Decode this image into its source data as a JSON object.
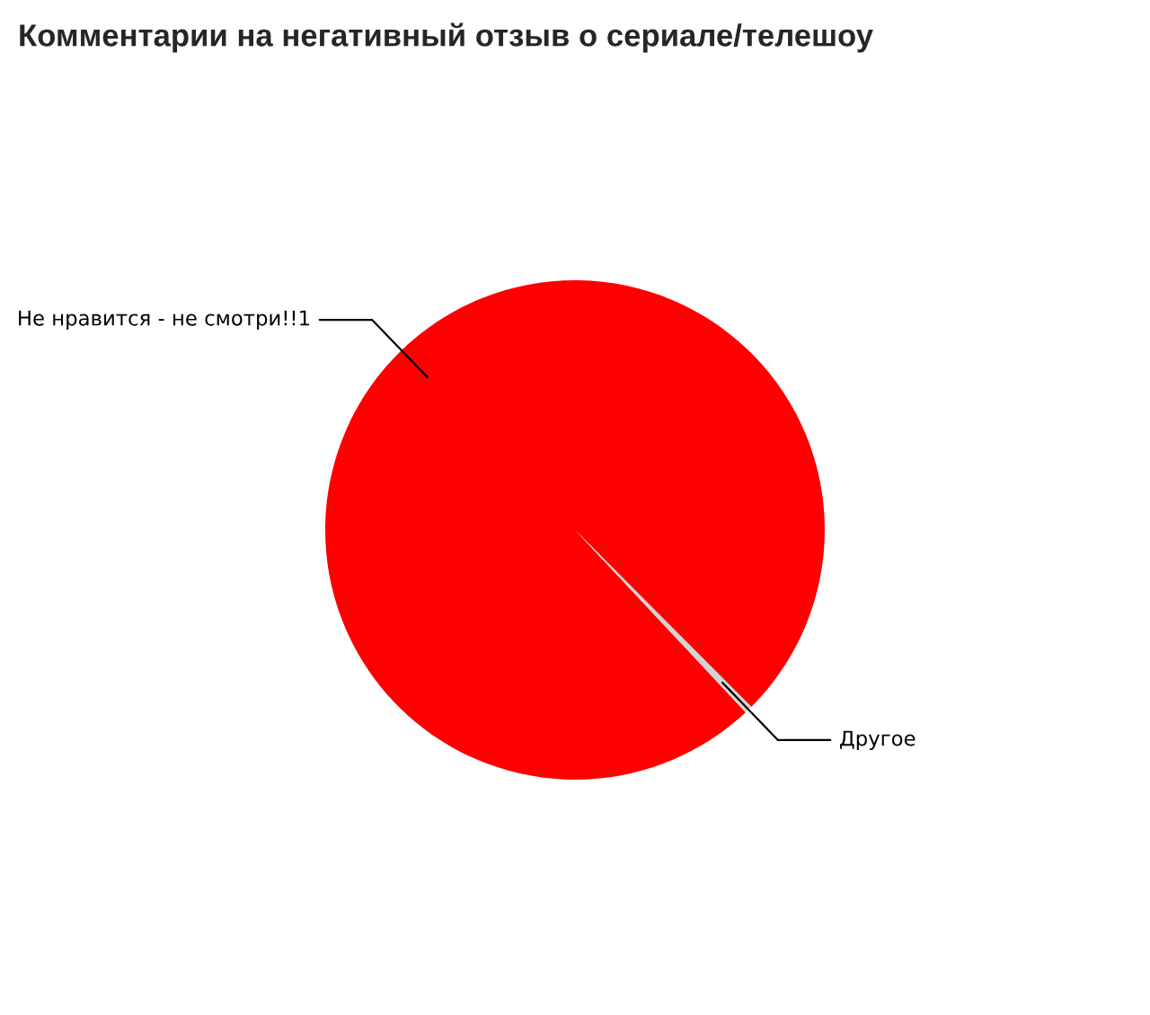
{
  "chart_data": {
    "type": "pie",
    "title": "Комментарии на негативный отзыв о сериале/телешоу",
    "categories": [
      "Не нравится - не смотри!!1",
      "Другое"
    ],
    "values": [
      99.5,
      0.5
    ],
    "colors": [
      "#ff0000",
      "#d3d3d3"
    ]
  }
}
